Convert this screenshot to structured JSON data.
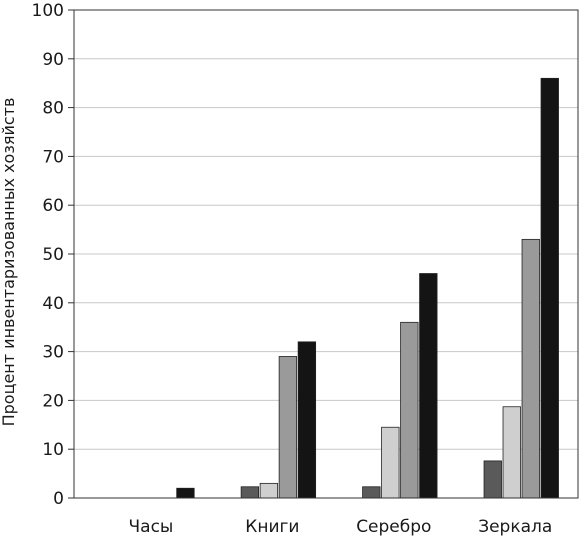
{
  "chart_data": {
    "type": "bar",
    "title": "",
    "xlabel": "",
    "ylabel": "Процент инвентаризованных хозяйств",
    "ylim": [
      0,
      100
    ],
    "yticks": [
      0,
      10,
      20,
      30,
      40,
      50,
      60,
      70,
      80,
      90,
      100
    ],
    "grid": true,
    "legend": "none",
    "categories": [
      "Часы",
      "Книги",
      "Серебро",
      "Зеркала"
    ],
    "series": [
      {
        "values": [
          0,
          2.3,
          2.3,
          7.6
        ],
        "color": "#5a5a5a"
      },
      {
        "values": [
          0,
          3,
          14.5,
          18.7
        ],
        "color": "#cfcfcf"
      },
      {
        "values": [
          0,
          29,
          36,
          53
        ],
        "color": "#9a9a9a"
      },
      {
        "values": [
          2,
          32,
          46,
          86
        ],
        "color": "#141414"
      }
    ]
  }
}
